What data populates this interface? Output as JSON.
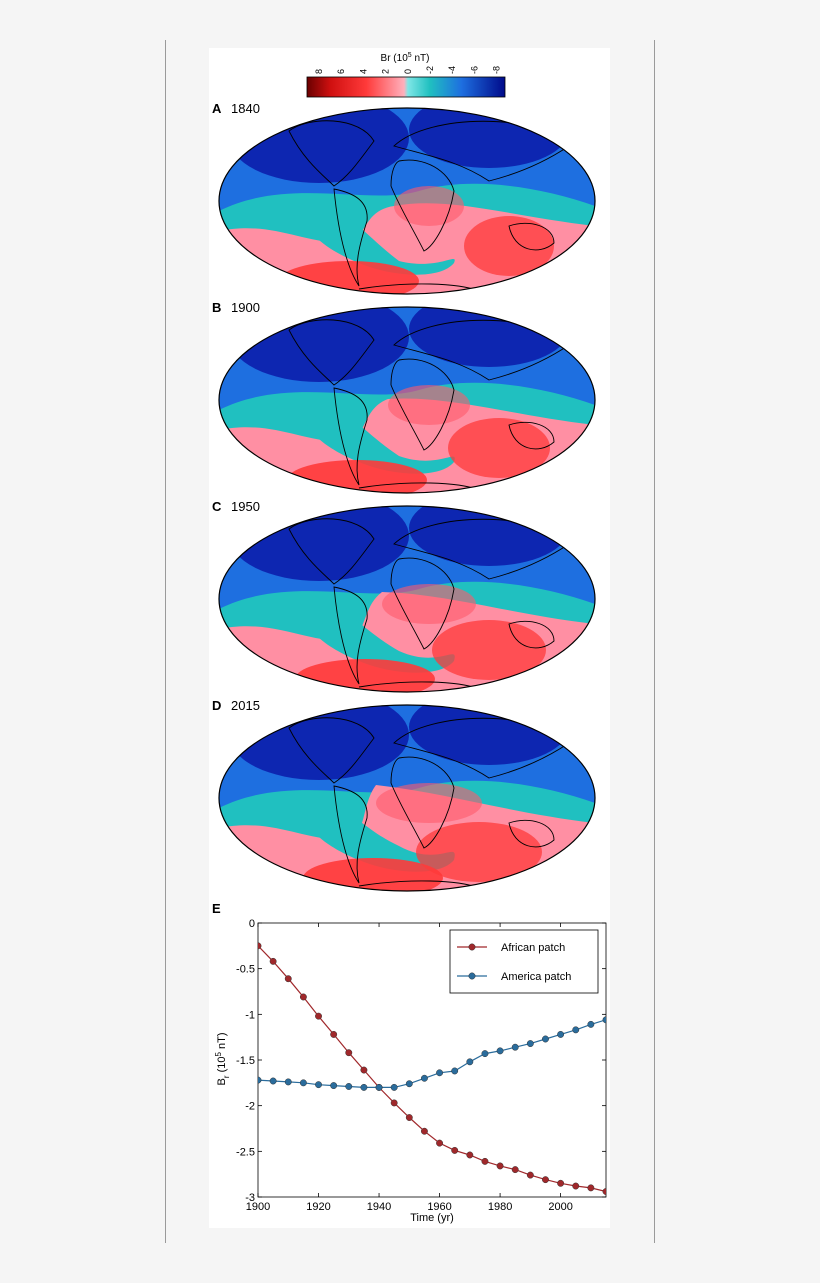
{
  "colorbar": {
    "label_prefix": "Br (10",
    "label_exp": "5",
    "label_suffix": " nT)",
    "ticks": [
      "8",
      "6",
      "4",
      "2",
      "0",
      "-2",
      "-4",
      "-6",
      "-8"
    ],
    "colors": {
      "strong_pos": "#7a0a0a",
      "pos": "#ff3a3a",
      "weak_pos": "#ff8fa3",
      "weak_neg": "#20c0c0",
      "neg": "#1e6fe0",
      "strong_neg": "#000a8a"
    }
  },
  "maps": [
    {
      "letter": "A",
      "year": "1840"
    },
    {
      "letter": "B",
      "year": "1900"
    },
    {
      "letter": "C",
      "year": "1950"
    },
    {
      "letter": "D",
      "year": "2015"
    }
  ],
  "chart_data": {
    "type": "line",
    "panel_letter": "E",
    "xlabel": "Time (yr)",
    "ylabel_main": "B",
    "ylabel_sub": "r",
    "ylabel_rest": " (10",
    "ylabel_exp": "5",
    "ylabel_unit": " nT)",
    "xlim": [
      1900,
      2015
    ],
    "ylim": [
      -3,
      0
    ],
    "xticks": [
      1900,
      1920,
      1940,
      1960,
      1980,
      2000
    ],
    "yticks": [
      0,
      -0.5,
      -1,
      -1.5,
      -2,
      -2.5,
      -3
    ],
    "x": [
      1900,
      1905,
      1910,
      1915,
      1920,
      1925,
      1930,
      1935,
      1940,
      1945,
      1950,
      1955,
      1960,
      1965,
      1970,
      1975,
      1980,
      1985,
      1990,
      1995,
      2000,
      2005,
      2010,
      2015
    ],
    "series": [
      {
        "name": "African patch",
        "color": "#a0282b",
        "values": [
          -0.25,
          -0.42,
          -0.61,
          -0.81,
          -1.02,
          -1.22,
          -1.42,
          -1.61,
          -1.8,
          -1.97,
          -2.13,
          -2.28,
          -2.41,
          -2.49,
          -2.54,
          -2.61,
          -2.66,
          -2.7,
          -2.76,
          -2.81,
          -2.85,
          -2.88,
          -2.9,
          -2.94
        ]
      },
      {
        "name": "America patch",
        "color": "#2a6c9c",
        "values": [
          -1.72,
          -1.73,
          -1.74,
          -1.75,
          -1.77,
          -1.78,
          -1.79,
          -1.8,
          -1.8,
          -1.8,
          -1.76,
          -1.7,
          -1.64,
          -1.62,
          -1.52,
          -1.43,
          -1.4,
          -1.36,
          -1.32,
          -1.27,
          -1.22,
          -1.17,
          -1.11,
          -1.06
        ]
      }
    ]
  }
}
